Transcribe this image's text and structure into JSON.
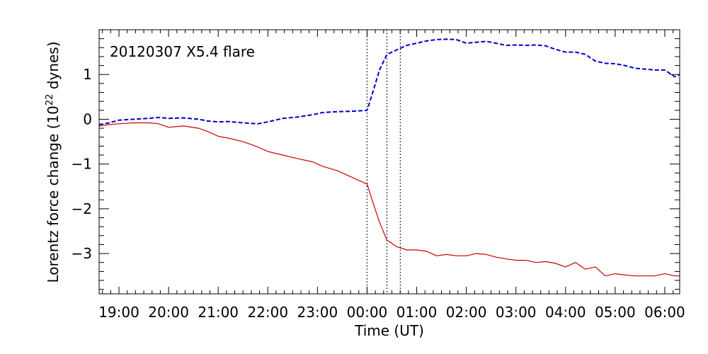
{
  "chart_data": {
    "type": "line",
    "title": "",
    "annotation": "20120307 X5.4 flare",
    "xlabel": "Time (UT)",
    "ylabel": {
      "prefix": "Lorentz force change (10",
      "superscript": "22",
      "suffix": " dynes)"
    },
    "xaxis_unit": "hours since 2012-03-06 00:00 UT",
    "xlim": [
      18.6,
      30.3
    ],
    "ylim": [
      -3.9,
      2.0
    ],
    "x_ticks": [
      {
        "x": 19,
        "label": "19:00"
      },
      {
        "x": 20,
        "label": "20:00"
      },
      {
        "x": 21,
        "label": "21:00"
      },
      {
        "x": 22,
        "label": "22:00"
      },
      {
        "x": 23,
        "label": "23:00"
      },
      {
        "x": 24,
        "label": "00:00"
      },
      {
        "x": 25,
        "label": "01:00"
      },
      {
        "x": 26,
        "label": "02:00"
      },
      {
        "x": 27,
        "label": "03:00"
      },
      {
        "x": 28,
        "label": "04:00"
      },
      {
        "x": 29,
        "label": "05:00"
      },
      {
        "x": 30,
        "label": "06:00"
      }
    ],
    "y_ticks": [
      {
        "y": 1,
        "label": "1"
      },
      {
        "y": 0,
        "label": "0"
      },
      {
        "y": -1,
        "label": "−1"
      },
      {
        "y": -2,
        "label": "−2"
      },
      {
        "y": -3,
        "label": "−3"
      }
    ],
    "vertical_lines": [
      24.0,
      24.4,
      24.67
    ],
    "grid": false,
    "series": [
      {
        "color": "#0000cc",
        "style": "dashed",
        "x": [
          18.6,
          18.8,
          19.0,
          19.3,
          19.6,
          19.8,
          20.0,
          20.3,
          20.6,
          20.8,
          21.0,
          21.2,
          21.5,
          21.8,
          22.0,
          22.3,
          22.6,
          22.9,
          23.1,
          23.4,
          23.7,
          24.0,
          24.1,
          24.25,
          24.4,
          24.6,
          24.8,
          25.0,
          25.2,
          25.4,
          25.6,
          25.8,
          26.0,
          26.2,
          26.4,
          26.6,
          26.8,
          27.0,
          27.2,
          27.4,
          27.6,
          27.8,
          28.0,
          28.2,
          28.4,
          28.6,
          28.8,
          29.0,
          29.2,
          29.4,
          29.6,
          29.8,
          30.0,
          30.2,
          30.3
        ],
        "y": [
          -0.12,
          -0.08,
          -0.02,
          0.0,
          0.02,
          0.04,
          0.02,
          0.03,
          0.0,
          -0.04,
          -0.06,
          -0.05,
          -0.08,
          -0.1,
          -0.06,
          0.02,
          0.05,
          0.1,
          0.15,
          0.17,
          0.18,
          0.2,
          0.55,
          1.1,
          1.45,
          1.55,
          1.65,
          1.7,
          1.75,
          1.78,
          1.79,
          1.78,
          1.7,
          1.72,
          1.74,
          1.7,
          1.65,
          1.66,
          1.65,
          1.66,
          1.64,
          1.56,
          1.5,
          1.5,
          1.45,
          1.3,
          1.25,
          1.24,
          1.2,
          1.14,
          1.12,
          1.1,
          1.1,
          0.95,
          1.0
        ]
      },
      {
        "color": "#cc0000",
        "style": "solid",
        "x": [
          18.6,
          18.8,
          19.0,
          19.3,
          19.6,
          19.8,
          20.0,
          20.3,
          20.6,
          20.8,
          21.0,
          21.2,
          21.5,
          21.8,
          22.0,
          22.3,
          22.6,
          22.9,
          23.1,
          23.4,
          23.7,
          24.0,
          24.1,
          24.25,
          24.4,
          24.6,
          24.8,
          25.0,
          25.2,
          25.4,
          25.6,
          25.8,
          26.0,
          26.2,
          26.4,
          26.6,
          26.8,
          27.0,
          27.2,
          27.4,
          27.6,
          27.8,
          28.0,
          28.2,
          28.4,
          28.6,
          28.8,
          29.0,
          29.2,
          29.4,
          29.6,
          29.8,
          30.0,
          30.2,
          30.3
        ],
        "y": [
          -0.15,
          -0.12,
          -0.1,
          -0.08,
          -0.08,
          -0.1,
          -0.18,
          -0.15,
          -0.2,
          -0.28,
          -0.38,
          -0.42,
          -0.5,
          -0.62,
          -0.72,
          -0.8,
          -0.88,
          -0.95,
          -1.05,
          -1.15,
          -1.3,
          -1.45,
          -1.8,
          -2.3,
          -2.7,
          -2.85,
          -2.92,
          -2.92,
          -2.95,
          -3.05,
          -3.02,
          -3.05,
          -3.05,
          -3.0,
          -3.02,
          -3.08,
          -3.12,
          -3.15,
          -3.15,
          -3.2,
          -3.18,
          -3.22,
          -3.3,
          -3.2,
          -3.35,
          -3.3,
          -3.5,
          -3.45,
          -3.48,
          -3.5,
          -3.5,
          -3.5,
          -3.45,
          -3.5,
          -3.5
        ]
      }
    ]
  }
}
